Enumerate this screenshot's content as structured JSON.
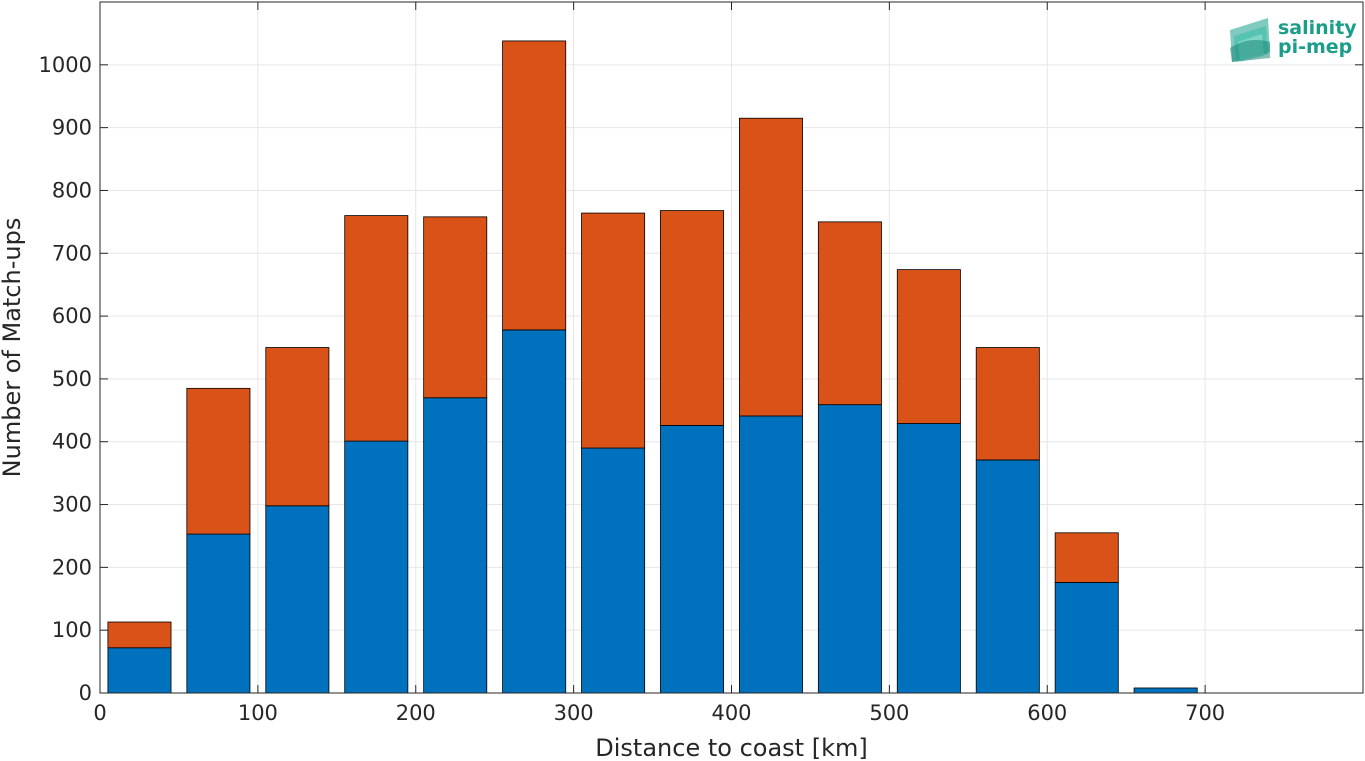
{
  "chart_data": {
    "type": "bar",
    "stacked": true,
    "xlabel": "Distance to coast [km]",
    "ylabel": "Number of Match-ups",
    "xlim": [
      0,
      800
    ],
    "ylim": [
      0,
      1100
    ],
    "xticks": [
      0,
      100,
      200,
      300,
      400,
      500,
      600,
      700
    ],
    "yticks": [
      0,
      100,
      200,
      300,
      400,
      500,
      600,
      700,
      800,
      900,
      1000
    ],
    "grid": true,
    "bar_width": 40,
    "x": [
      25,
      75,
      125,
      175,
      225,
      275,
      325,
      375,
      425,
      475,
      525,
      575,
      625,
      675,
      725,
      775
    ],
    "series": [
      {
        "color": "#0072bd",
        "values": [
          72,
          253,
          298,
          401,
          470,
          578,
          390,
          426,
          441,
          459,
          429,
          371,
          176,
          8,
          0,
          0
        ]
      },
      {
        "color": "#d95319",
        "values": [
          41,
          232,
          252,
          359,
          288,
          460,
          374,
          342,
          474,
          291,
          245,
          179,
          79,
          0,
          0,
          0
        ]
      }
    ]
  },
  "logo": {
    "line1": "salinity",
    "line2": "pi-mep",
    "color": "#1a9e8a"
  }
}
